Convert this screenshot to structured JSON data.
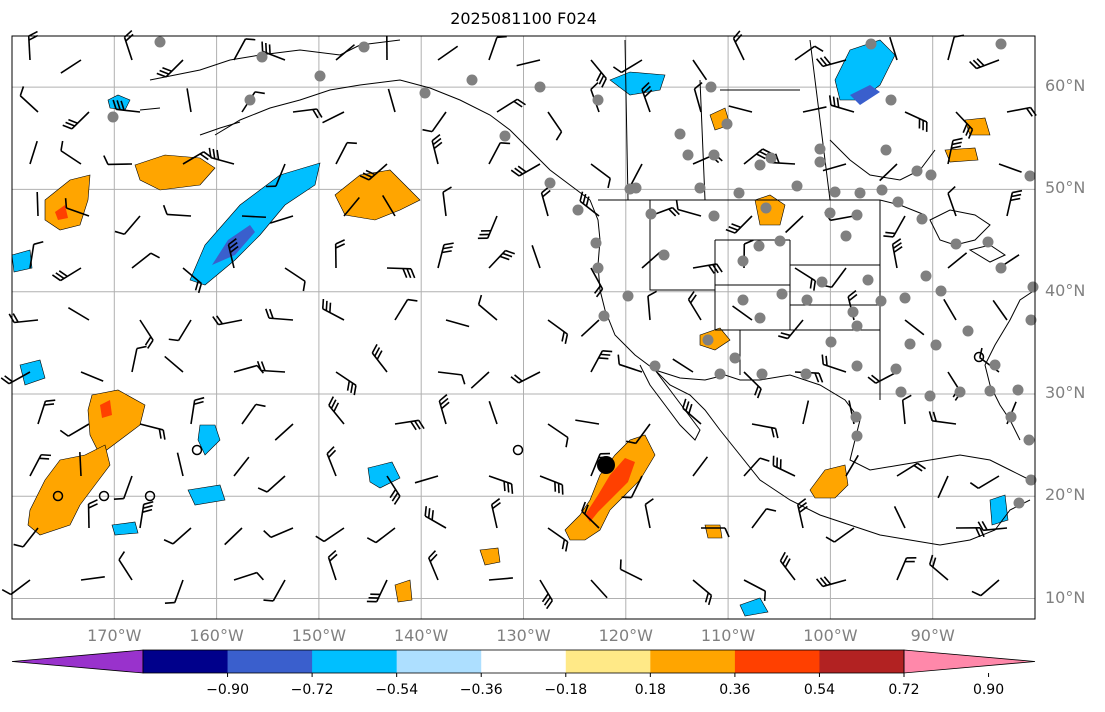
{
  "title": "2025081100 F024",
  "lat_labels": [
    "60°N",
    "50°N",
    "40°N",
    "30°N",
    "20°N",
    "10°N"
  ],
  "lon_labels": [
    "170°W",
    "160°W",
    "150°W",
    "140°W",
    "130°W",
    "120°W",
    "110°W",
    "100°W",
    "90°W"
  ],
  "colorbar": {
    "colors": [
      "#9932CC",
      "#00008B",
      "#3A5FCD",
      "#00BFFF",
      "#ADDFFF",
      "#FFFFFF",
      "#FFE987",
      "#FFA500",
      "#FF4000",
      "#B22222",
      "#FF88AA"
    ],
    "labels": [
      "−0.90",
      "−0.72",
      "−0.54",
      "−0.36",
      "−0.18",
      "0.18",
      "0.36",
      "0.54",
      "0.72",
      "0.90"
    ]
  },
  "map": {
    "extent": {
      "lon_min": -180,
      "lon_max": -80,
      "lat_min": 8,
      "lat_max": 65
    },
    "gridlines": true,
    "tropical_storm_center": {
      "lon": -121,
      "lat": 23
    }
  }
}
